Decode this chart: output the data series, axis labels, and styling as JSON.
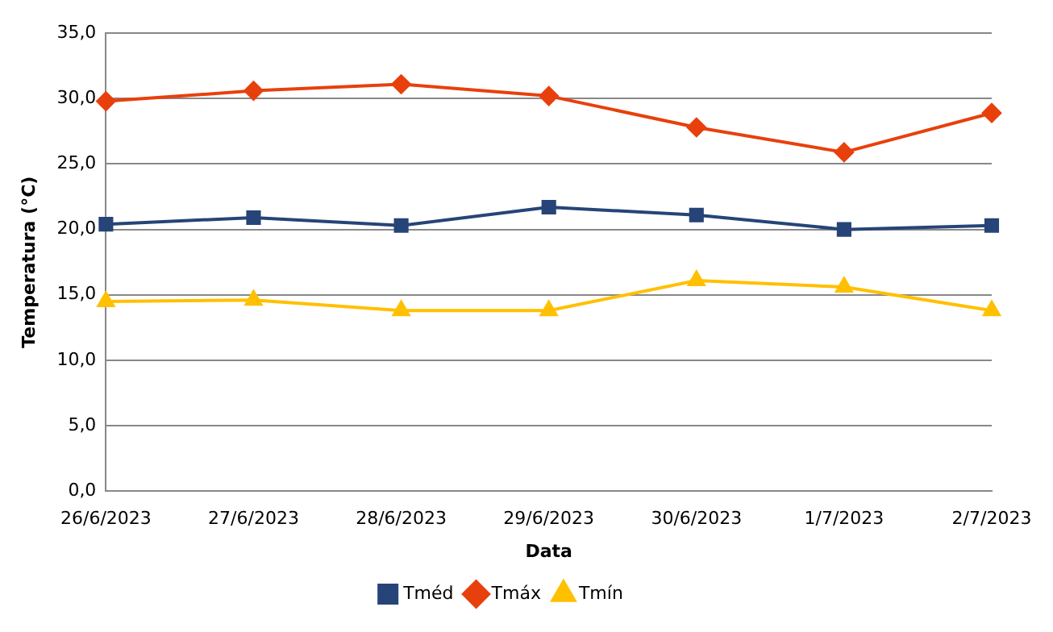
{
  "chart_data": {
    "type": "line",
    "xlabel": "Data",
    "ylabel": "Temperatura (°C)",
    "categories": [
      "26/6/2023",
      "27/6/2023",
      "28/6/2023",
      "29/6/2023",
      "30/6/2023",
      "1/7/2023",
      "2/7/2023"
    ],
    "series": [
      {
        "name": "Tméd",
        "color": "#264478",
        "marker": "square",
        "values": [
          20.4,
          20.9,
          20.3,
          21.7,
          21.1,
          20.0,
          20.3
        ]
      },
      {
        "name": "Tmáx",
        "color": "#e8400c",
        "marker": "diamond",
        "values": [
          29.8,
          30.6,
          31.1,
          30.2,
          27.8,
          25.9,
          28.9
        ]
      },
      {
        "name": "Tmín",
        "color": "#ffc000",
        "marker": "triangle",
        "values": [
          14.5,
          14.6,
          13.8,
          13.8,
          16.1,
          15.6,
          13.8
        ]
      }
    ],
    "ylim": [
      0,
      35
    ],
    "yticks": [
      {
        "value": 0,
        "label": "0,0"
      },
      {
        "value": 5,
        "label": "5,0"
      },
      {
        "value": 10,
        "label": "10,0"
      },
      {
        "value": 15,
        "label": "15,0"
      },
      {
        "value": 20,
        "label": "20,0"
      },
      {
        "value": 25,
        "label": "25,0"
      },
      {
        "value": 30,
        "label": "30,0"
      },
      {
        "value": 35,
        "label": "35,0"
      }
    ],
    "grid": "y",
    "legend": "bottom"
  }
}
